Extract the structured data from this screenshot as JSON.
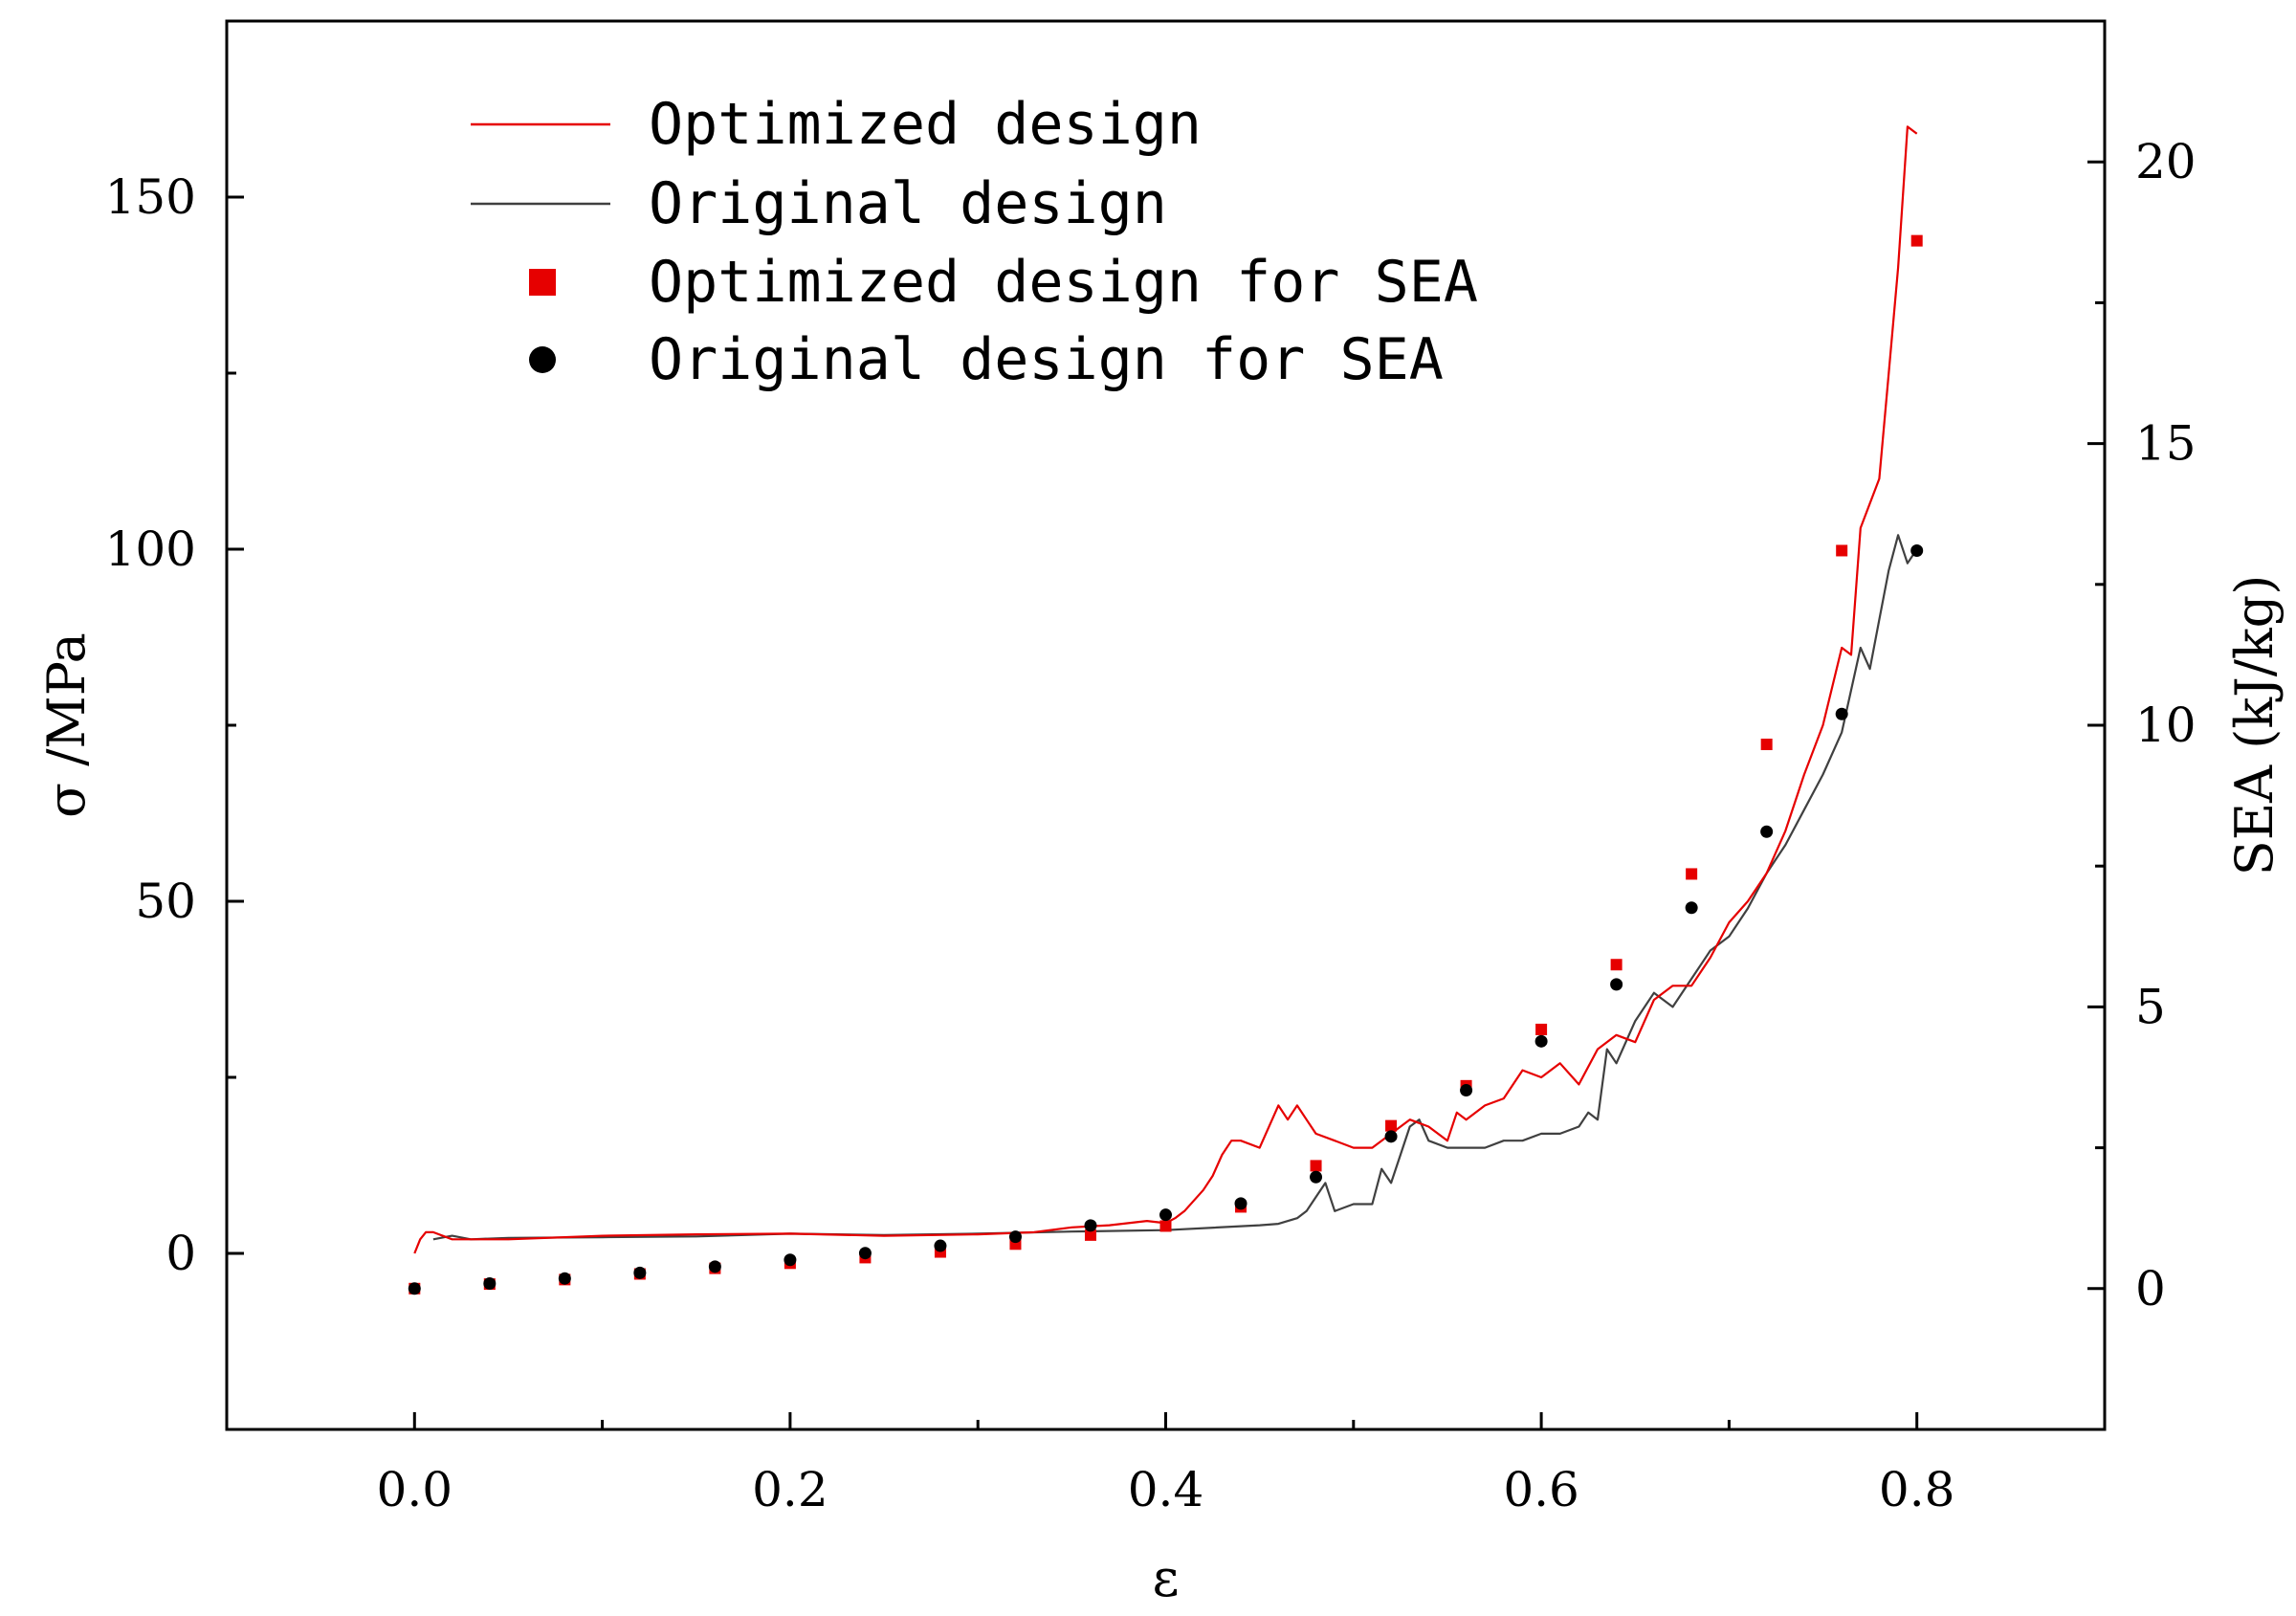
{
  "chart_data": {
    "type": "line",
    "xlabel": "ε",
    "ylabel": "σ /MPa",
    "y2label": "SEA (kJ/kg)",
    "xlim": [
      -0.1,
      0.9
    ],
    "ylim": [
      -25,
      175
    ],
    "y2lim": [
      -2.5,
      22.5
    ],
    "xticks": [
      0.0,
      0.2,
      0.4,
      0.6,
      0.8
    ],
    "xtick_labels": [
      "0.0",
      "0.2",
      "0.4",
      "0.6",
      "0.8"
    ],
    "yticks": [
      0,
      50,
      100,
      150
    ],
    "ytick_labels": [
      "0",
      "50",
      "100",
      "150"
    ],
    "y2ticks": [
      0,
      5,
      10,
      15,
      20
    ],
    "y2tick_labels": [
      "0",
      "5",
      "10",
      "15",
      "20"
    ],
    "grid": false,
    "legend_position": "top-left",
    "legend_labels": {
      "opt_line": "Optimized design",
      "orig_line": "Original design",
      "opt_sea": "Optimized design for SEA",
      "orig_sea": "Original design for SEA"
    },
    "colors": {
      "optimized": "#e60000",
      "original": "#404040",
      "original_marker": "#000000"
    },
    "series": [
      {
        "name": "Optimized design",
        "axis": "left",
        "kind": "line",
        "x": [
          0.0,
          0.003,
          0.006,
          0.01,
          0.02,
          0.03,
          0.05,
          0.1,
          0.15,
          0.2,
          0.25,
          0.3,
          0.33,
          0.35,
          0.37,
          0.39,
          0.4,
          0.405,
          0.41,
          0.42,
          0.425,
          0.43,
          0.435,
          0.44,
          0.45,
          0.46,
          0.465,
          0.47,
          0.475,
          0.48,
          0.49,
          0.5,
          0.51,
          0.52,
          0.53,
          0.54,
          0.55,
          0.555,
          0.56,
          0.57,
          0.58,
          0.59,
          0.6,
          0.61,
          0.62,
          0.63,
          0.64,
          0.65,
          0.66,
          0.67,
          0.68,
          0.69,
          0.7,
          0.71,
          0.72,
          0.73,
          0.74,
          0.75,
          0.76,
          0.765,
          0.77,
          0.78,
          0.785,
          0.79,
          0.795,
          0.8
        ],
        "y": [
          0,
          2,
          3,
          3,
          2,
          2,
          2,
          2.5,
          2.7,
          2.8,
          2.5,
          2.7,
          3,
          3.7,
          4,
          4.6,
          4.3,
          5,
          6,
          9,
          11,
          14,
          16,
          16,
          15,
          21,
          19,
          21,
          19,
          17,
          16,
          15,
          15,
          17,
          19,
          18,
          16,
          20,
          19,
          21,
          22,
          26,
          25,
          27,
          24,
          29,
          31,
          30,
          36,
          38,
          38,
          42,
          47,
          50,
          54,
          60,
          68,
          75,
          86,
          85,
          103,
          110,
          125,
          140,
          160,
          159
        ]
      },
      {
        "name": "Original design",
        "axis": "left",
        "kind": "line",
        "x": [
          0.01,
          0.02,
          0.03,
          0.05,
          0.1,
          0.15,
          0.2,
          0.25,
          0.3,
          0.35,
          0.4,
          0.45,
          0.46,
          0.47,
          0.475,
          0.48,
          0.485,
          0.49,
          0.5,
          0.51,
          0.515,
          0.52,
          0.525,
          0.53,
          0.535,
          0.54,
          0.55,
          0.56,
          0.57,
          0.58,
          0.59,
          0.6,
          0.61,
          0.62,
          0.625,
          0.63,
          0.635,
          0.64,
          0.65,
          0.66,
          0.67,
          0.68,
          0.69,
          0.7,
          0.71,
          0.72,
          0.73,
          0.74,
          0.75,
          0.76,
          0.765,
          0.77,
          0.775,
          0.78,
          0.785,
          0.79,
          0.795,
          0.8
        ],
        "y": [
          2,
          2.5,
          2,
          2.2,
          2.3,
          2.4,
          2.8,
          2.6,
          2.8,
          3.1,
          3.3,
          4,
          4.2,
          5,
          6,
          8,
          10,
          6,
          7,
          7,
          12,
          10,
          14,
          18,
          19,
          16,
          15,
          15,
          15,
          16,
          16,
          17,
          17,
          18,
          20,
          19,
          29,
          27,
          33,
          37,
          35,
          39,
          43,
          45,
          49,
          54,
          58,
          63,
          68,
          74,
          80,
          86,
          83,
          90,
          97,
          102,
          98,
          100
        ]
      },
      {
        "name": "Optimized design for SEA",
        "axis": "right",
        "kind": "scatter",
        "marker": "square",
        "x": [
          0.0,
          0.04,
          0.08,
          0.12,
          0.16,
          0.2,
          0.24,
          0.28,
          0.32,
          0.36,
          0.4,
          0.44,
          0.48,
          0.52,
          0.56,
          0.6,
          0.64,
          0.68,
          0.72,
          0.76,
          0.8
        ],
        "y": [
          0.0,
          0.08,
          0.16,
          0.26,
          0.36,
          0.45,
          0.55,
          0.65,
          0.79,
          0.95,
          1.11,
          1.45,
          2.18,
          2.89,
          3.6,
          4.6,
          5.75,
          7.36,
          9.66,
          13.1,
          18.6
        ]
      },
      {
        "name": "Original design for SEA",
        "axis": "right",
        "kind": "scatter",
        "marker": "circle",
        "x": [
          0.0,
          0.04,
          0.08,
          0.12,
          0.16,
          0.2,
          0.24,
          0.28,
          0.32,
          0.36,
          0.4,
          0.44,
          0.48,
          0.52,
          0.56,
          0.6,
          0.64,
          0.68,
          0.72,
          0.76,
          0.8
        ],
        "y": [
          0.0,
          0.09,
          0.18,
          0.28,
          0.39,
          0.51,
          0.63,
          0.76,
          0.92,
          1.12,
          1.31,
          1.51,
          1.98,
          2.7,
          3.52,
          4.39,
          5.4,
          6.76,
          8.11,
          10.2,
          13.1
        ]
      }
    ]
  }
}
